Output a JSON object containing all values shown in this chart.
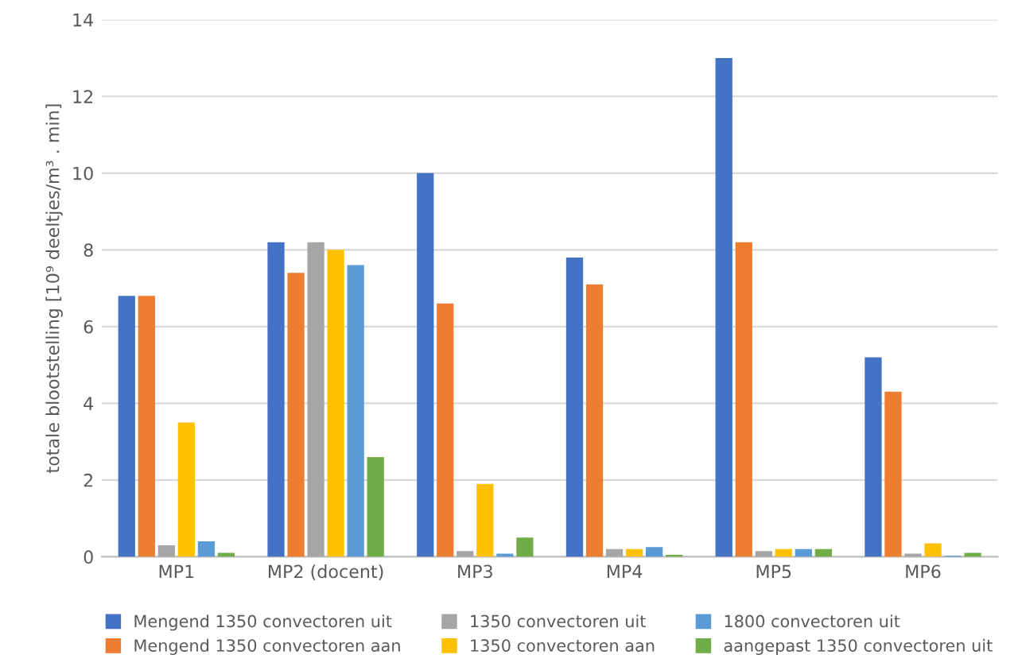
{
  "chart_data": {
    "type": "bar",
    "ylabel": "totale blootstelling [10⁹ deeltjes/m³ . min]",
    "categories": [
      "MP1",
      "MP2 (docent)",
      "MP3",
      "MP4",
      "MP5",
      "MP6"
    ],
    "series": [
      {
        "name": "Mengend 1350 convectoren uit",
        "color": "#4472c4",
        "values": [
          6.8,
          8.2,
          10.0,
          7.8,
          13.0,
          5.2
        ]
      },
      {
        "name": "Mengend 1350 convectoren aan",
        "color": "#ed7d31",
        "values": [
          6.8,
          7.4,
          6.6,
          7.1,
          8.2,
          4.3
        ]
      },
      {
        "name": "1350 convectoren uit",
        "color": "#a5a5a5",
        "values": [
          0.3,
          8.2,
          0.15,
          0.2,
          0.15,
          0.08
        ]
      },
      {
        "name": "1350 convectoren aan",
        "color": "#ffc000",
        "values": [
          3.5,
          8.0,
          1.9,
          0.2,
          0.2,
          0.35
        ]
      },
      {
        "name": "1800 convectoren uit",
        "color": "#5b9bd5",
        "values": [
          0.4,
          7.6,
          0.08,
          0.25,
          0.2,
          0.03
        ]
      },
      {
        "name": "aangepast 1350 convectoren uit",
        "color": "#70ad47",
        "values": [
          0.1,
          2.6,
          0.5,
          0.05,
          0.2,
          0.1
        ]
      }
    ],
    "ylim": [
      0,
      14
    ],
    "yticks": [
      0,
      2,
      4,
      6,
      8,
      10,
      12,
      14
    ],
    "grid": "y",
    "legend": "bottom"
  }
}
